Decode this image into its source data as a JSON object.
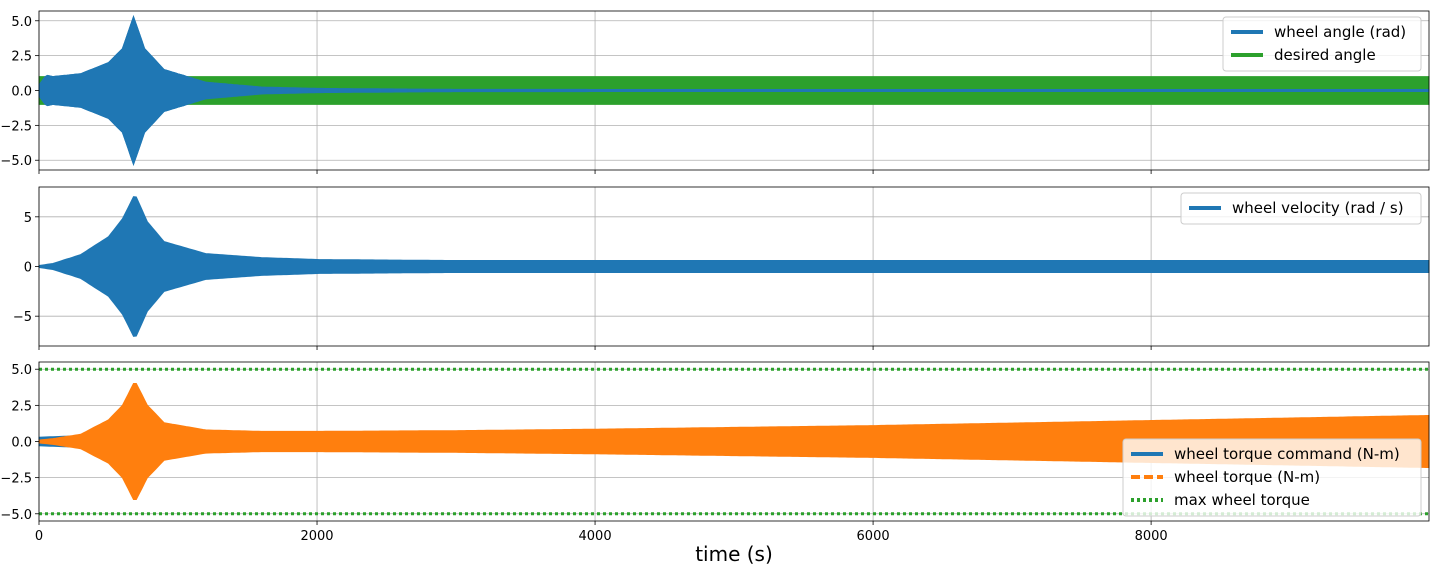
{
  "figure": {
    "xlabel": "time (s)"
  },
  "chart_data": [
    {
      "type": "line",
      "x_ticks": [
        0,
        2000,
        4000,
        6000,
        8000
      ],
      "xlim": [
        0,
        9999
      ],
      "y_ticks": [
        -5.0,
        -2.5,
        0.0,
        2.5,
        5.0
      ],
      "y_tick_labels": [
        "−5.0",
        "−2.5",
        "0.0",
        "2.5",
        "5.0"
      ],
      "ylim": [
        -5.7,
        5.7
      ],
      "grid": true,
      "legend_position": "top-right",
      "series": [
        {
          "name": "wheel angle (rad)",
          "color": "#1f77b4",
          "style": "solid",
          "envelope": {
            "x": [
              0,
              50,
              100,
              300,
              500,
              600,
              680,
              760,
              900,
              1200,
              1600,
              2000,
              3000,
              5000,
              9999
            ],
            "amplitude": [
              0.4,
              1.1,
              1.0,
              1.2,
              2.0,
              3.0,
              5.3,
              3.0,
              1.5,
              0.6,
              0.25,
              0.15,
              0.08,
              0.07,
              0.07
            ]
          }
        },
        {
          "name": "desired angle",
          "color": "#2ca02c",
          "style": "solid",
          "envelope": {
            "x": [
              0,
              9999
            ],
            "amplitude": [
              1.0,
              1.0
            ]
          }
        }
      ]
    },
    {
      "type": "line",
      "x_ticks": [
        0,
        2000,
        4000,
        6000,
        8000
      ],
      "xlim": [
        0,
        9999
      ],
      "y_ticks": [
        -5,
        0,
        5
      ],
      "y_tick_labels": [
        "−5",
        "0",
        "5"
      ],
      "ylim": [
        -8.0,
        8.0
      ],
      "grid": true,
      "legend_position": "top-right",
      "series": [
        {
          "name": "wheel velocity (rad / s)",
          "color": "#1f77b4",
          "style": "solid",
          "envelope": {
            "x": [
              0,
              100,
              300,
              500,
              600,
              690,
              780,
              900,
              1200,
              1600,
              2000,
              3000,
              5000,
              9999
            ],
            "amplitude": [
              0.1,
              0.3,
              1.2,
              3.0,
              4.8,
              7.3,
              4.5,
              2.5,
              1.3,
              0.9,
              0.7,
              0.6,
              0.6,
              0.6
            ]
          }
        }
      ]
    },
    {
      "type": "line",
      "x_ticks": [
        0,
        2000,
        4000,
        6000,
        8000
      ],
      "x_tick_labels": [
        "0",
        "2000",
        "4000",
        "6000",
        "8000"
      ],
      "xlim": [
        0,
        9999
      ],
      "y_ticks": [
        -5.0,
        -2.5,
        0.0,
        2.5,
        5.0
      ],
      "y_tick_labels": [
        "−5.0",
        "−2.5",
        "0.0",
        "2.5",
        "5.0"
      ],
      "ylim": [
        -5.5,
        5.5
      ],
      "grid": true,
      "legend_position": "bottom-right",
      "series": [
        {
          "name": "wheel torque command (N-m)",
          "color": "#1f77b4",
          "style": "solid",
          "envelope": {
            "x": [
              0,
              300,
              9999
            ],
            "amplitude": [
              0.3,
              0.4,
              0.4
            ]
          }
        },
        {
          "name": "wheel torque (N-m)",
          "color": "#ff7f0e",
          "style": "dashed",
          "envelope": {
            "x": [
              0,
              100,
              300,
              500,
              600,
              690,
              780,
              900,
              1200,
              1600,
              2000,
              3000,
              4000,
              6000,
              8000,
              9999
            ],
            "amplitude": [
              0.1,
              0.2,
              0.5,
              1.5,
              2.5,
              4.2,
              2.5,
              1.3,
              0.8,
              0.7,
              0.7,
              0.75,
              0.85,
              1.1,
              1.45,
              1.8
            ]
          }
        },
        {
          "name": "max wheel torque",
          "color": "#2ca02c",
          "style": "dotted",
          "values_hline": [
            5.0,
            -5.0
          ]
        }
      ]
    }
  ]
}
